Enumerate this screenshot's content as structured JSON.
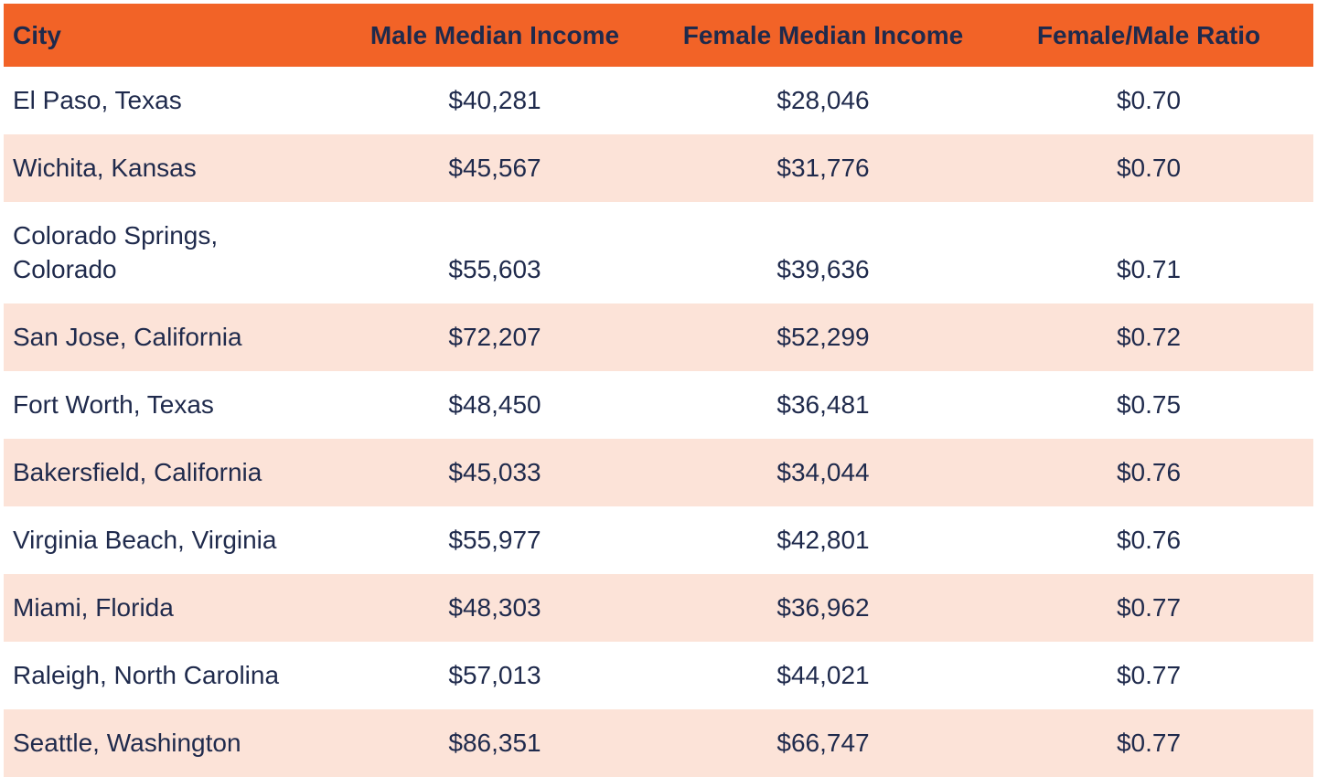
{
  "table": {
    "columns": [
      {
        "label": "City"
      },
      {
        "label": "Male Median Income"
      },
      {
        "label": "Female Median Income"
      },
      {
        "label": "Female/Male Ratio"
      }
    ],
    "rows": [
      {
        "city": "El Paso, Texas",
        "male": "$40,281",
        "female": "$28,046",
        "ratio": "$0.70"
      },
      {
        "city": "Wichita, Kansas",
        "male": "$45,567",
        "female": "$31,776",
        "ratio": "$0.70"
      },
      {
        "city": "Colorado Springs,\nColorado",
        "male": "$55,603",
        "female": "$39,636",
        "ratio": "$0.71"
      },
      {
        "city": "San Jose, California",
        "male": "$72,207",
        "female": "$52,299",
        "ratio": "$0.72"
      },
      {
        "city": "Fort Worth, Texas",
        "male": "$48,450",
        "female": "$36,481",
        "ratio": "$0.75"
      },
      {
        "city": "Bakersfield, California",
        "male": "$45,033",
        "female": "$34,044",
        "ratio": "$0.76"
      },
      {
        "city": "Virginia Beach, Virginia",
        "male": "$55,977",
        "female": "$42,801",
        "ratio": "$0.76"
      },
      {
        "city": "Miami, Florida",
        "male": "$48,303",
        "female": "$36,962",
        "ratio": "$0.77"
      },
      {
        "city": "Raleigh, North Carolina",
        "male": "$57,013",
        "female": "$44,021",
        "ratio": "$0.77"
      },
      {
        "city": "Seattle, Washington",
        "male": "$86,351",
        "female": "$66,747",
        "ratio": "$0.77"
      }
    ],
    "colors": {
      "header_bg": "#F26327",
      "row_alt_bg": "#FCE3D8",
      "text": "#1F2A4C"
    }
  },
  "chart_data": {
    "type": "table",
    "title": "",
    "columns": [
      "City",
      "Male Median Income",
      "Female Median Income",
      "Female/Male Ratio"
    ],
    "rows": [
      [
        "El Paso, Texas",
        40281,
        28046,
        0.7
      ],
      [
        "Wichita, Kansas",
        45567,
        31776,
        0.7
      ],
      [
        "Colorado Springs, Colorado",
        55603,
        39636,
        0.71
      ],
      [
        "San Jose, California",
        72207,
        52299,
        0.72
      ],
      [
        "Fort Worth, Texas",
        48450,
        36481,
        0.75
      ],
      [
        "Bakersfield, California",
        45033,
        34044,
        0.76
      ],
      [
        "Virginia Beach, Virginia",
        55977,
        42801,
        0.76
      ],
      [
        "Miami, Florida",
        48303,
        36962,
        0.77
      ],
      [
        "Raleigh, North Carolina",
        57013,
        44021,
        0.77
      ],
      [
        "Seattle, Washington",
        86351,
        66747,
        0.77
      ]
    ]
  }
}
